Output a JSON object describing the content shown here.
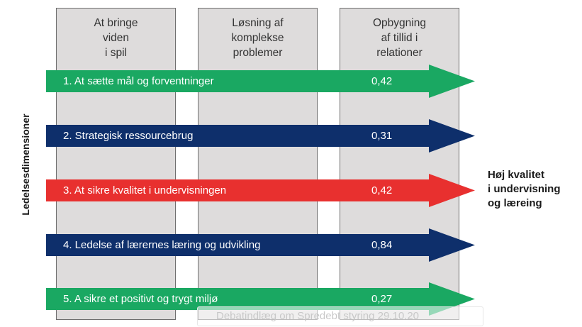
{
  "columns": [
    {
      "header": "At bringe\nviden\ni spil"
    },
    {
      "header": "Løsning af\nkomplekse\nproblemer"
    },
    {
      "header": "Opbygning\naf tillid i\nrelationer"
    }
  ],
  "arrows": [
    {
      "label": "1. At sætte mål og forventninger",
      "value": "0,42",
      "color": "#1aa862"
    },
    {
      "label": "2. Strategisk ressourcebrug",
      "value": "0,31",
      "color": "#0e2f6b"
    },
    {
      "label": "3. At sikre kvalitet i undervisningen",
      "value": "0,42",
      "color": "#e8302f"
    },
    {
      "label": "4. Ledelse af lærernes læring og udvikling",
      "value": "0,84",
      "color": "#0e2f6b"
    },
    {
      "label": "5. A sikre et positivt og trygt miljø",
      "value": "0,27",
      "color": "#1aa862"
    }
  ],
  "side_label": "Ledelsesdimensioner",
  "outcome": "Høj kvalitet\ni undervisning\nog læreing",
  "watermark": "Debatindlæg om Spredebt styring 29.10.20"
}
